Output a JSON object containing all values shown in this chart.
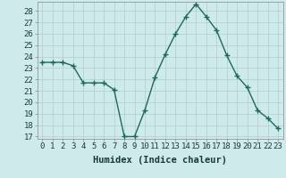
{
  "x": [
    0,
    1,
    2,
    3,
    4,
    5,
    6,
    7,
    8,
    9,
    10,
    11,
    12,
    13,
    14,
    15,
    16,
    17,
    18,
    19,
    20,
    21,
    22,
    23
  ],
  "y": [
    23.5,
    23.5,
    23.5,
    23.2,
    21.7,
    21.7,
    21.7,
    21.1,
    17.0,
    17.0,
    19.3,
    22.2,
    24.2,
    26.0,
    27.5,
    28.6,
    27.5,
    26.3,
    24.1,
    22.3,
    21.3,
    19.3,
    18.6,
    17.7
  ],
  "line_color": "#1a6b5a",
  "marker": "+",
  "markersize": 4,
  "linewidth": 1.0,
  "background_color": "#ceeaea",
  "grid_color": "#b0cccc",
  "xlabel": "Humidex (Indice chaleur)",
  "ylim_min": 17,
  "ylim_max": 29,
  "xlim_min": -0.5,
  "xlim_max": 23.5,
  "yticks": [
    17,
    18,
    19,
    20,
    21,
    22,
    23,
    24,
    25,
    26,
    27,
    28
  ],
  "xticks": [
    0,
    1,
    2,
    3,
    4,
    5,
    6,
    7,
    8,
    9,
    10,
    11,
    12,
    13,
    14,
    15,
    16,
    17,
    18,
    19,
    20,
    21,
    22,
    23
  ],
  "xlabel_fontsize": 7.5,
  "tick_fontsize": 6.5,
  "tick_color": "#1a3a3a",
  "spine_color": "#888888",
  "markeredgewidth": 1.0
}
